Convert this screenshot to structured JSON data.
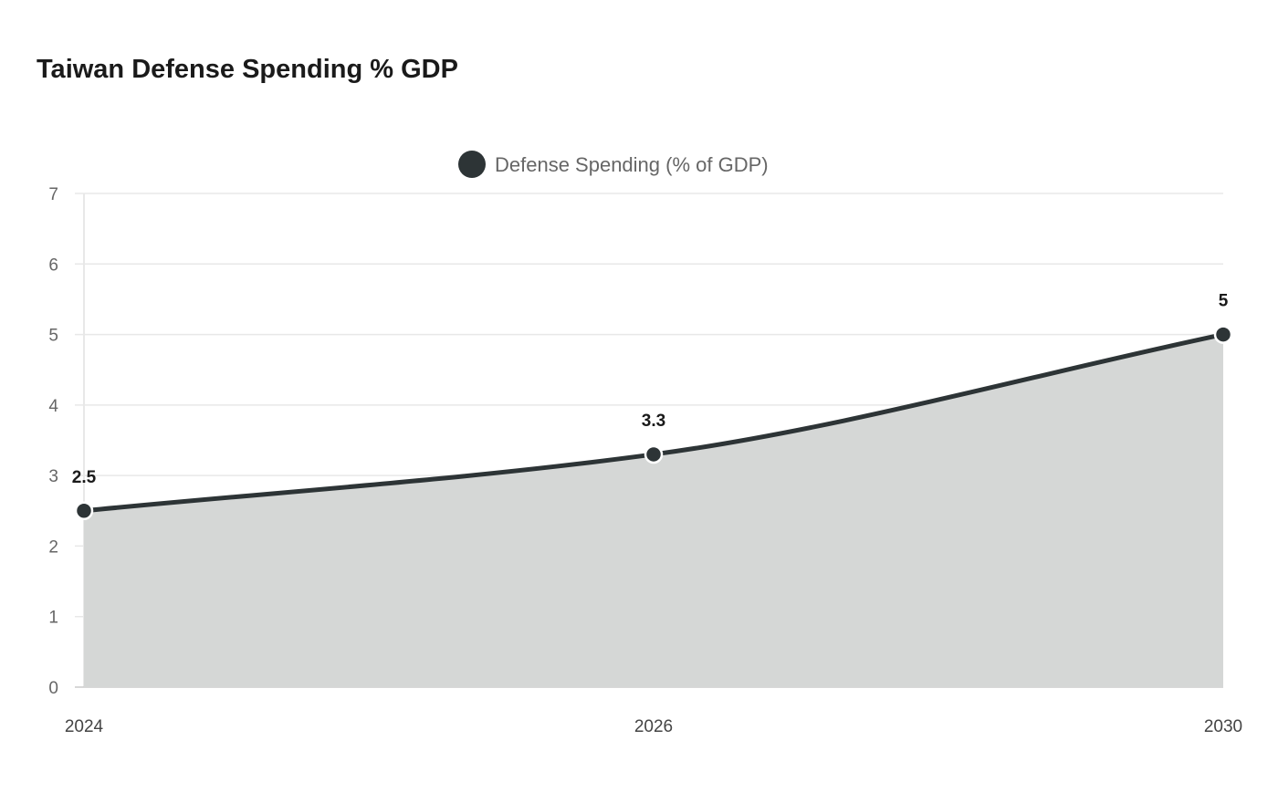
{
  "chart_data": {
    "type": "area",
    "title": "Taiwan Defense Spending % GDP",
    "categories": [
      "2024",
      "2026",
      "2030"
    ],
    "series": [
      {
        "name": "Defense Spending (% of GDP)",
        "values": [
          2.5,
          3.3,
          5
        ],
        "color": "#2d3436",
        "fill": "#d5d7d6"
      }
    ],
    "yticks": [
      0,
      1,
      2,
      3,
      4,
      5,
      6,
      7
    ],
    "ylim": [
      0,
      7
    ],
    "xlabel": "",
    "ylabel": "",
    "grid": true,
    "legend": "top-center",
    "data_labels": [
      "2.5",
      "3.3",
      "5"
    ]
  }
}
